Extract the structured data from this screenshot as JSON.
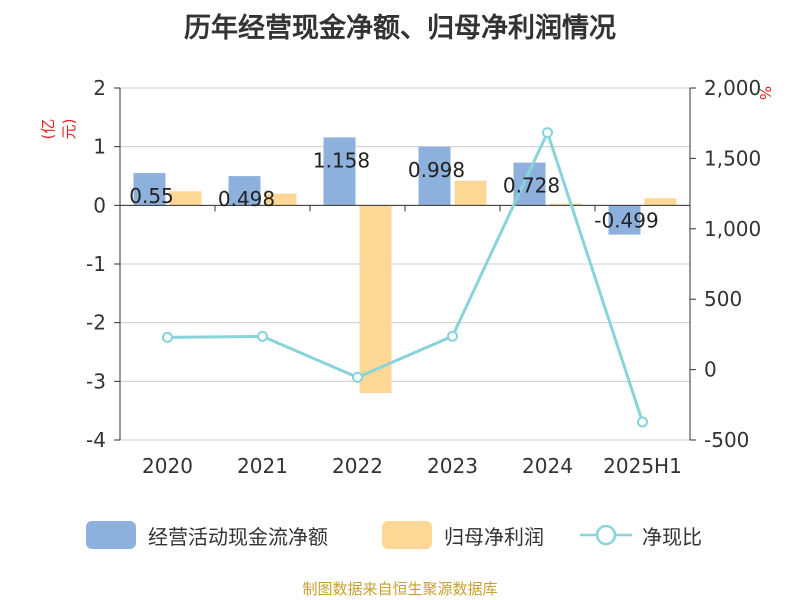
{
  "title": "历年经营现金净额、归母净利润情况",
  "left_axis_unit": "(亿元)",
  "right_axis_unit": "%",
  "source": "制图数据来自恒生聚源数据库",
  "colors": {
    "cash": "#8eb0dc",
    "profit": "#fdd796",
    "ratio": "#88d4d8",
    "grid": "#cccccc"
  },
  "chart_data": {
    "type": "bar",
    "categories": [
      "2020",
      "2021",
      "2022",
      "2023",
      "2024",
      "2025H1"
    ],
    "series": [
      {
        "name": "经营活动现金流净额",
        "type": "bar",
        "axis": "left",
        "values": [
          0.55,
          0.498,
          1.158,
          0.998,
          0.728,
          -0.499
        ],
        "labels": [
          "0.55",
          "0.498",
          "1.158",
          "0.998",
          "0.728",
          "-0.499"
        ]
      },
      {
        "name": "归母净利润",
        "type": "bar",
        "axis": "left",
        "values": [
          0.24,
          0.2,
          -3.2,
          0.42,
          0.03,
          0.12
        ]
      },
      {
        "name": "净现比",
        "type": "line",
        "axis": "right",
        "values": [
          229,
          236,
          -55,
          237,
          1683,
          -372
        ]
      }
    ],
    "ylim_left": [
      -4,
      2
    ],
    "yticks_left": [
      "2",
      "1",
      "0",
      "-1",
      "-2",
      "-3",
      "-4"
    ],
    "ylim_right": [
      -500,
      2000
    ],
    "yticks_right": [
      "2,000",
      "1,500",
      "1,000",
      "500",
      "0",
      "-500"
    ],
    "grid": true,
    "legend_position": "bottom"
  }
}
